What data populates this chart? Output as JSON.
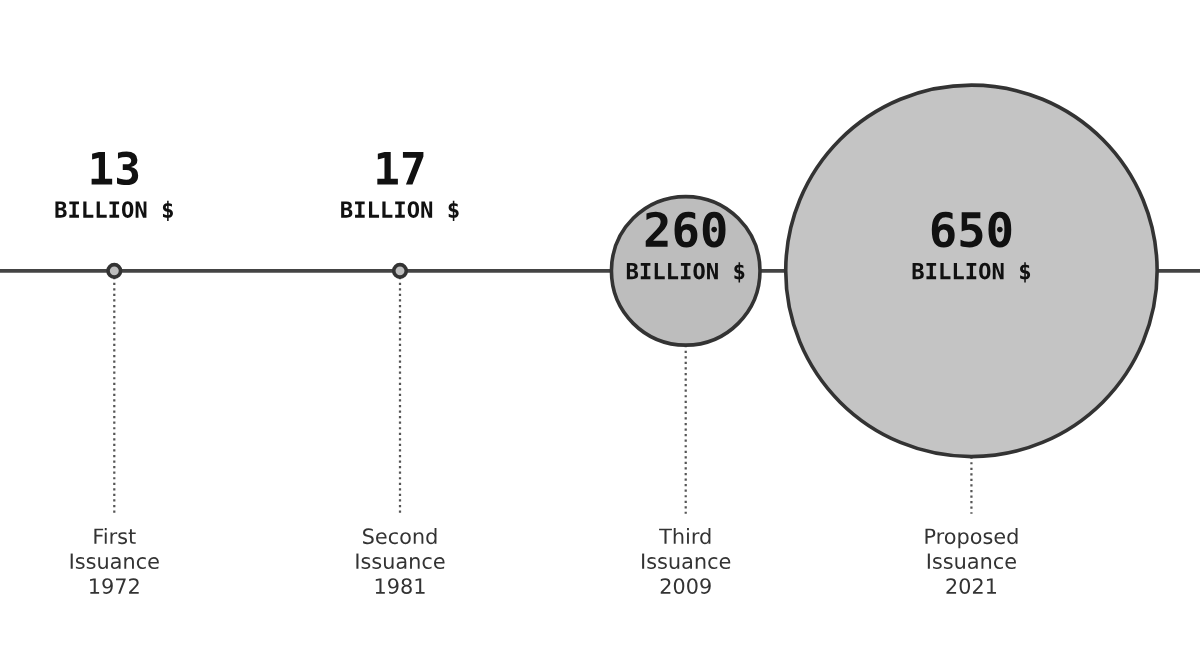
{
  "chart_data": {
    "type": "other",
    "categories": [
      "First\nIssuance\n1972",
      "Second\nIssuance\n1981",
      "Third\nIssuance\n2009",
      "Proposed\nIssuance\n2021"
    ],
    "values": [
      13,
      17,
      260,
      650
    ],
    "value_labels": [
      "13\nBILLION $",
      "17\nBILLION $",
      "260\nBILLION $",
      "650\nBILLION $"
    ],
    "colors": [
      "#bdbdbd",
      "#bdbdbd",
      "#bdbdbd",
      "#c4c4c4"
    ]
  }
}
